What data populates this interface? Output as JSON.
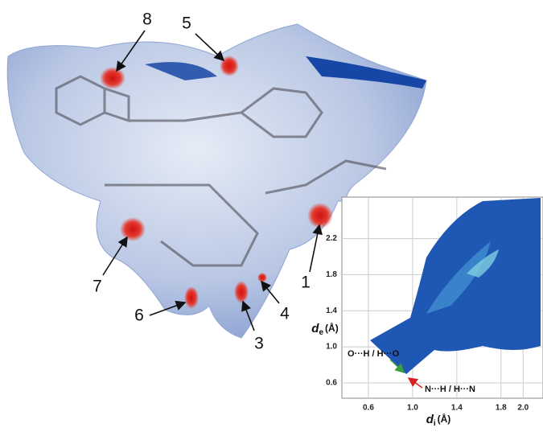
{
  "surface_labels": [
    "8",
    "5",
    "1",
    "7",
    "6",
    "3",
    "4"
  ],
  "chart_data": {
    "type": "fingerprint",
    "xlabel": {
      "symbol": "d",
      "subscript": "i",
      "unit": "(Å)"
    },
    "ylabel": {
      "symbol": "d",
      "subscript": "e",
      "unit": "(Å)"
    },
    "xlim": [
      0.36,
      2.18
    ],
    "ylim": [
      0.43,
      2.66
    ],
    "xticks": [
      0.6,
      {
        "value": 1.0,
        "label": "1.0"
      },
      1.4,
      1.8,
      {
        "value": 2.0,
        "label": "2.0"
      }
    ],
    "yticks": [
      0.6,
      {
        "value": 1.0,
        "label": "1.0"
      },
      1.4,
      1.8,
      2.2
    ],
    "grid": true,
    "annotations": [
      "O···H / H···O",
      "N···H / H···N"
    ]
  }
}
